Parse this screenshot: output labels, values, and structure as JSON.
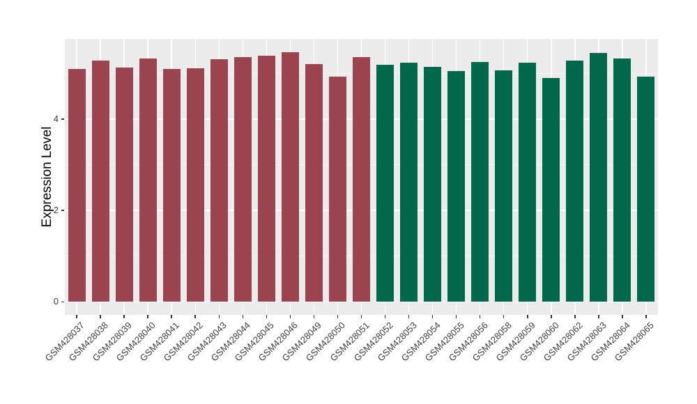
{
  "figure": {
    "background": "#FFFFFF",
    "panel_background": "#EBEBEB",
    "grid_major_color": "#FFFFFF",
    "grid_minor_color": "rgba(255,255,255,0.62)",
    "tick_mark_color": "#333333",
    "axis_text_color": "#3D3D3D",
    "axis_title_color": "#000000"
  },
  "chart_data": {
    "type": "bar",
    "title": "",
    "xlabel": "",
    "ylabel": "Expression Level",
    "ylim": [
      -0.285,
      5.75
    ],
    "yticks": [
      0,
      2,
      4
    ],
    "yticks_minor": [
      1,
      3,
      5
    ],
    "grid": "on",
    "legend": "none",
    "bar_groups": [
      {
        "name": "maroon",
        "color": "#9B4450"
      },
      {
        "name": "green",
        "color": "#00684B"
      }
    ],
    "bars": [
      {
        "label": "GSM428037",
        "value": 5.09,
        "group": "maroon"
      },
      {
        "label": "GSM428038",
        "value": 5.27,
        "group": "maroon"
      },
      {
        "label": "GSM428039",
        "value": 5.12,
        "group": "maroon"
      },
      {
        "label": "GSM428040",
        "value": 5.32,
        "group": "maroon"
      },
      {
        "label": "GSM428041",
        "value": 5.09,
        "group": "maroon"
      },
      {
        "label": "GSM428042",
        "value": 5.11,
        "group": "maroon"
      },
      {
        "label": "GSM428043",
        "value": 5.31,
        "group": "maroon"
      },
      {
        "label": "GSM428044",
        "value": 5.35,
        "group": "maroon"
      },
      {
        "label": "GSM428045",
        "value": 5.38,
        "group": "maroon"
      },
      {
        "label": "GSM428046",
        "value": 5.46,
        "group": "maroon"
      },
      {
        "label": "GSM428049",
        "value": 5.2,
        "group": "maroon"
      },
      {
        "label": "GSM428050",
        "value": 4.93,
        "group": "maroon"
      },
      {
        "label": "GSM428051",
        "value": 5.35,
        "group": "maroon"
      },
      {
        "label": "GSM428052",
        "value": 5.19,
        "group": "green"
      },
      {
        "label": "GSM428053",
        "value": 5.23,
        "group": "green"
      },
      {
        "label": "GSM428054",
        "value": 5.14,
        "group": "green"
      },
      {
        "label": "GSM428055",
        "value": 5.05,
        "group": "green"
      },
      {
        "label": "GSM428056",
        "value": 5.25,
        "group": "green"
      },
      {
        "label": "GSM428058",
        "value": 5.07,
        "group": "green"
      },
      {
        "label": "GSM428059",
        "value": 5.23,
        "group": "green"
      },
      {
        "label": "GSM428060",
        "value": 4.9,
        "group": "green"
      },
      {
        "label": "GSM428062",
        "value": 5.28,
        "group": "green"
      },
      {
        "label": "GSM428063",
        "value": 5.44,
        "group": "green"
      },
      {
        "label": "GSM428064",
        "value": 5.33,
        "group": "green"
      },
      {
        "label": "GSM428065",
        "value": 4.92,
        "group": "green"
      }
    ]
  }
}
